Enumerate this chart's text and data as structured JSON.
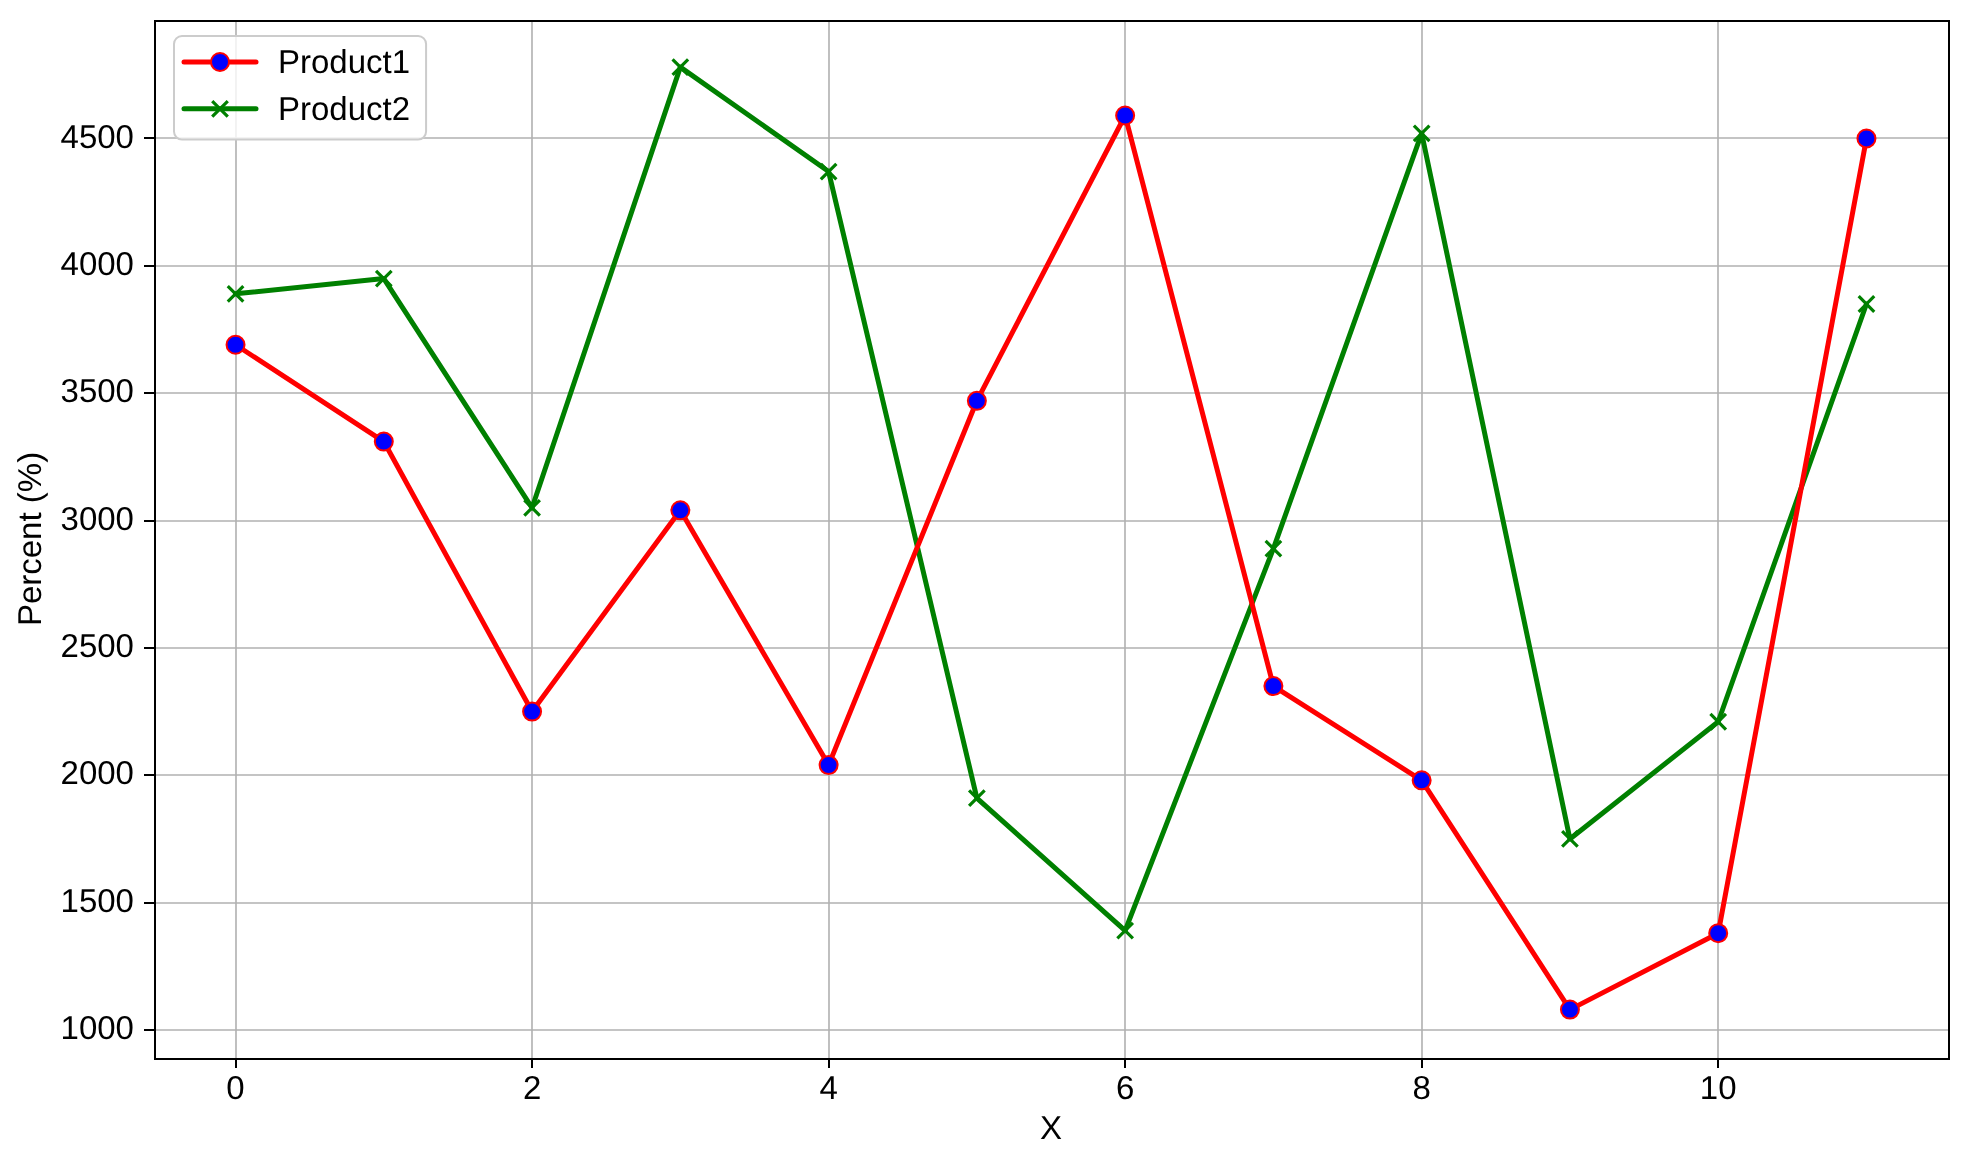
{
  "chart_data": {
    "type": "line",
    "xlabel": "X",
    "ylabel": "Percent (%)",
    "x": [
      0,
      1,
      2,
      3,
      4,
      5,
      6,
      7,
      8,
      9,
      10,
      11
    ],
    "series": [
      {
        "name": "Product1",
        "color": "#ff0000",
        "colors": [
          "#0000ff",
          "#0000ff",
          "#0000ff",
          "#0000ff",
          "#0000ff",
          "#0000ff",
          "#0000ff",
          "#0000ff",
          "#0000ff",
          "#0000ff",
          "#0000ff",
          "#0000ff"
        ],
        "marker": "circle",
        "values": [
          3690,
          3310,
          2250,
          3040,
          2040,
          3470,
          4590,
          2350,
          1980,
          1080,
          1380,
          4500
        ]
      },
      {
        "name": "Product2",
        "color": "#008000",
        "marker": "cross",
        "values": [
          3890,
          3950,
          3050,
          4780,
          4370,
          1910,
          1390,
          2890,
          4520,
          1750,
          2210,
          3850
        ]
      }
    ],
    "xlim": [
      -0.55,
      11.55
    ],
    "ylim": [
      890,
      4965
    ],
    "xticks": [
      0,
      2,
      4,
      6,
      8,
      10
    ],
    "yticks": [
      1000,
      1500,
      2000,
      2500,
      3000,
      3500,
      4000,
      4500
    ],
    "grid": true,
    "legend": "top left",
    "line_style": "solid"
  }
}
